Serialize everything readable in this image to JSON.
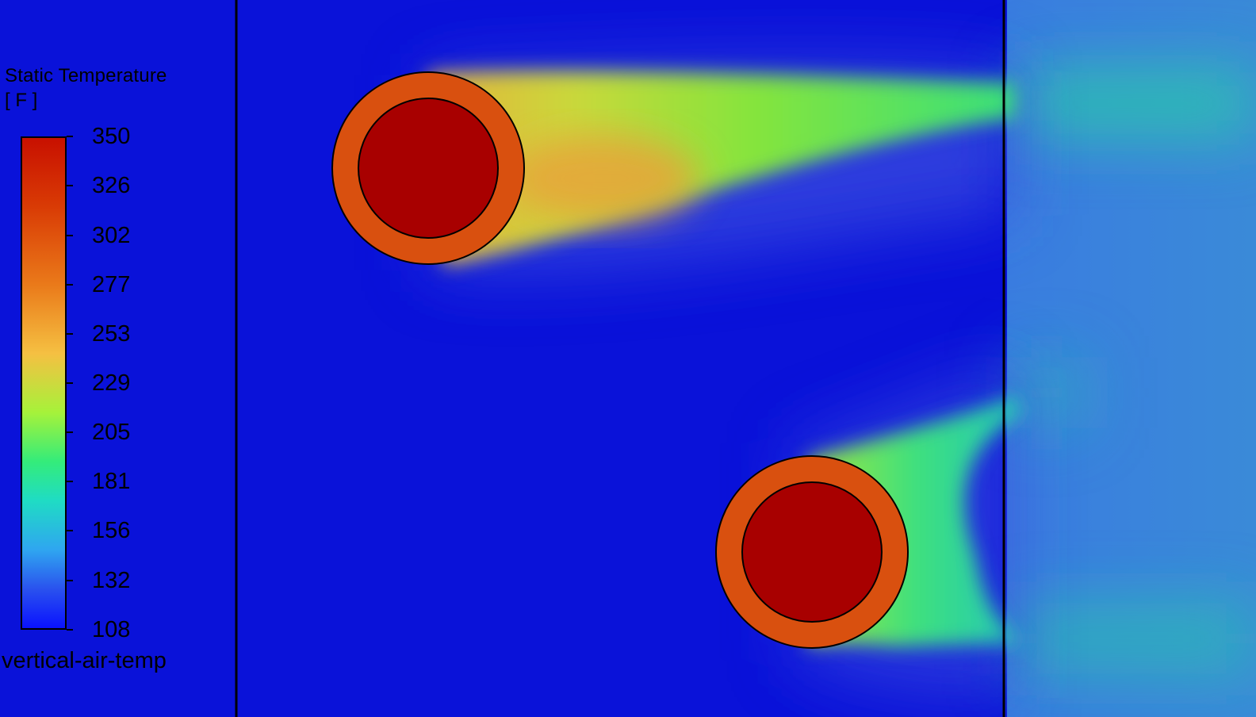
{
  "legend": {
    "title": "Static Temperature",
    "unit": "[ F ]",
    "ticks": [
      "350",
      "326",
      "302",
      "277",
      "253",
      "229",
      "205",
      "181",
      "156",
      "132",
      "108"
    ],
    "name": "vertical-air-temp"
  },
  "colors": {
    "background_cold": "#0a12d9",
    "outlet_region": "#3a86dc",
    "pipe_wall": "#d9500f",
    "pipe_core": "#a80000",
    "outline": "#000000"
  }
}
